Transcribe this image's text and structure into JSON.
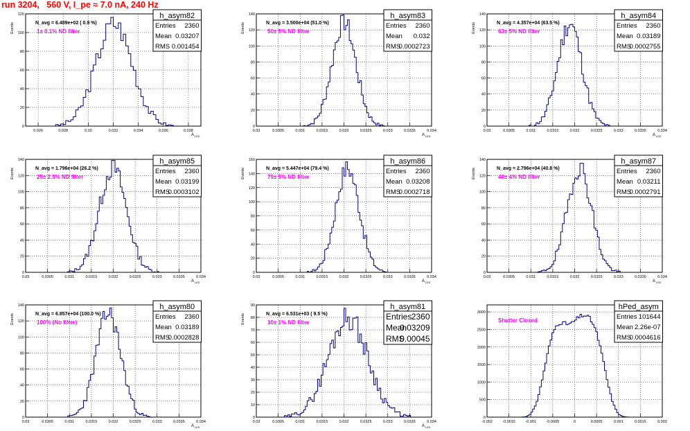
{
  "header": {
    "title": "run 3204,   560 V, I_pe ≈ 7.0 nA, 240 Hz",
    "color": "#ff0000"
  },
  "style": {
    "histogram_color": "#000080",
    "annotation_color": "#ff00ff",
    "grid": "dotted"
  },
  "common": {
    "ylabel": "Events",
    "xlabel": "A",
    "xlabel_sub": "LED"
  },
  "chart_data": [
    {
      "type": "bar",
      "name": "h_asym82",
      "nav": "N_avg = 6.489e+02 ( 0.9 %)",
      "filter": "1± 0.1% ND filter",
      "stats": {
        "entries": "2360",
        "mean": "0.03207",
        "rms": "0.001454"
      },
      "xlim": [
        0.025,
        0.039
      ],
      "xticks": [
        "0.026",
        "0.028",
        "0.03",
        "0.032",
        "0.034",
        "0.036",
        "0.038"
      ],
      "ylim": [
        0,
        120
      ],
      "yticks": [
        "0",
        "20",
        "40",
        "60",
        "80",
        "100",
        "120"
      ],
      "mean": 0.03207,
      "sigma": 0.001454,
      "peak": 110,
      "bins": 70,
      "seed": 3
    },
    {
      "type": "bar",
      "name": "h_asym83",
      "nav": "N_avg = 3.500e+04 (51.0 %)",
      "filter": "50± 5% ND filter",
      "stats": {
        "entries": "2360",
        "mean": "0.032",
        "rms": "0.0002723"
      },
      "xlim": [
        0.03,
        0.034
      ],
      "xticks": [
        "0.03",
        "0.0305",
        "0.031",
        "0.0315",
        "0.032",
        "0.0325",
        "0.033",
        "0.0335",
        "0.034"
      ],
      "ylim": [
        0,
        140
      ],
      "yticks": [
        "0",
        "20",
        "40",
        "60",
        "80",
        "100",
        "120",
        "140"
      ],
      "mean": 0.032,
      "sigma": 0.0002723,
      "peak": 130,
      "bins": 100,
      "seed": 7
    },
    {
      "type": "bar",
      "name": "h_asym84",
      "nav": "N_avg = 4.357e+04 (63.5 %)",
      "filter": "63± 5% ND filter",
      "stats": {
        "entries": "2360",
        "mean": "0.03189",
        "rms": "0.0002755"
      },
      "xlim": [
        0.03,
        0.034
      ],
      "xticks": [
        "0.03",
        "0.0305",
        "0.031",
        "0.0315",
        "0.032",
        "0.0325",
        "0.033",
        "0.0335",
        "0.034"
      ],
      "ylim": [
        0,
        140
      ],
      "yticks": [
        "0",
        "20",
        "40",
        "60",
        "80",
        "100",
        "120",
        "140"
      ],
      "mean": 0.03189,
      "sigma": 0.0002755,
      "peak": 128,
      "bins": 100,
      "seed": 11
    },
    {
      "type": "bar",
      "name": "h_asym85",
      "nav": "N_avg = 1.796e+04 (26.2 %)",
      "filter": "25± 2.5% ND filter",
      "stats": {
        "entries": "2360",
        "mean": "0.03199",
        "rms": "0.0003102"
      },
      "xlim": [
        0.03,
        0.034
      ],
      "xticks": [
        "0.03",
        "0.0305",
        "0.031",
        "0.0315",
        "0.032",
        "0.0325",
        "0.033",
        "0.0335",
        "0.034"
      ],
      "ylim": [
        0,
        140
      ],
      "yticks": [
        "0",
        "20",
        "40",
        "60",
        "80",
        "100",
        "120",
        "140"
      ],
      "mean": 0.03199,
      "sigma": 0.0003102,
      "peak": 130,
      "bins": 100,
      "seed": 13
    },
    {
      "type": "bar",
      "name": "h_asym86",
      "nav": "N_avg = 5.447e+04 (79.4 %)",
      "filter": "79± 5% ND filter",
      "stats": {
        "entries": "2360",
        "mean": "0.03208",
        "rms": "0.0002718"
      },
      "xlim": [
        0.03,
        0.034
      ],
      "xticks": [
        "0.03",
        "0.0305",
        "0.031",
        "0.0315",
        "0.032",
        "0.0325",
        "0.033",
        "0.0335",
        "0.034"
      ],
      "ylim": [
        0,
        160
      ],
      "yticks": [
        "0",
        "20",
        "40",
        "60",
        "80",
        "100",
        "120",
        "140",
        "160"
      ],
      "mean": 0.03208,
      "sigma": 0.0002718,
      "peak": 148,
      "bins": 100,
      "seed": 17
    },
    {
      "type": "bar",
      "name": "h_asym87",
      "nav": "N_avg = 2.796e+04 (40.8 %)",
      "filter": "40± 4% ND filter",
      "stats": {
        "entries": "2360",
        "mean": "0.03211",
        "rms": "0.0002791"
      },
      "xlim": [
        0.03,
        0.034
      ],
      "xticks": [
        "0.03",
        "0.0305",
        "0.031",
        "0.0315",
        "0.032",
        "0.0325",
        "0.033",
        "0.0335",
        "0.034"
      ],
      "ylim": [
        0,
        140
      ],
      "yticks": [
        "0",
        "20",
        "40",
        "60",
        "80",
        "100",
        "120",
        "140"
      ],
      "mean": 0.03211,
      "sigma": 0.0002791,
      "peak": 130,
      "bins": 100,
      "seed": 19
    },
    {
      "type": "bar",
      "name": "h_asym80",
      "nav": "N_avg = 6.857e+04 (100.0 %)",
      "filter": "100% (No filter)",
      "stats": {
        "entries": "2360",
        "mean": "0.03189",
        "rms": "0.0002828"
      },
      "xlim": [
        0.03,
        0.034
      ],
      "xticks": [
        "0.03",
        "0.0305",
        "0.031",
        "0.0315",
        "0.032",
        "0.0325",
        "0.033",
        "0.0335",
        "0.034"
      ],
      "ylim": [
        0,
        140
      ],
      "yticks": [
        "0",
        "20",
        "40",
        "60",
        "80",
        "100",
        "120",
        "140"
      ],
      "mean": 0.03189,
      "sigma": 0.0002828,
      "peak": 130,
      "bins": 100,
      "seed": 23
    },
    {
      "type": "bar",
      "name": "h_asym81",
      "nav": "N_avg = 6.531e+03 ( 9.5 %)",
      "filter": "10± 1% ND filter",
      "stats": {
        "entries": "2360",
        "mean": "0.03209",
        "rms": "0.00045"
      },
      "bigstats": true,
      "xlim": [
        0.03,
        0.034
      ],
      "xticks": [
        "0.03",
        "0.0305",
        "0.031",
        "0.0315",
        "0.032",
        "0.0325",
        "0.033",
        "0.0335",
        "0.034"
      ],
      "ylim": [
        0,
        90
      ],
      "yticks": [
        "0",
        "10",
        "20",
        "30",
        "40",
        "50",
        "60",
        "70",
        "80",
        "90"
      ],
      "mean": 0.03209,
      "sigma": 0.00045,
      "peak": 80,
      "bins": 100,
      "seed": 29
    },
    {
      "type": "bar",
      "name": "hPed_asym",
      "nav": "",
      "filter": "Shutter Closed",
      "stats": {
        "entries": "101644",
        "mean": "2.26e-07",
        "rms": "0.0004616"
      },
      "noaxislabel": true,
      "xlim": [
        -0.002,
        0.002
      ],
      "xticks": [
        "-0.002",
        "-0.0015",
        "-0.001",
        "-0.0005",
        "0",
        "0.0005",
        "0.001",
        "0.0015",
        "0.002"
      ],
      "ylim": [
        0,
        3200
      ],
      "yticks": [
        "0",
        "500",
        "1000",
        "1500",
        "2000",
        "2500",
        "3000"
      ],
      "mean": 0.0,
      "sigma": 0.00046,
      "peak": 2950,
      "bins": 100,
      "seed": 31,
      "flat": true
    }
  ]
}
